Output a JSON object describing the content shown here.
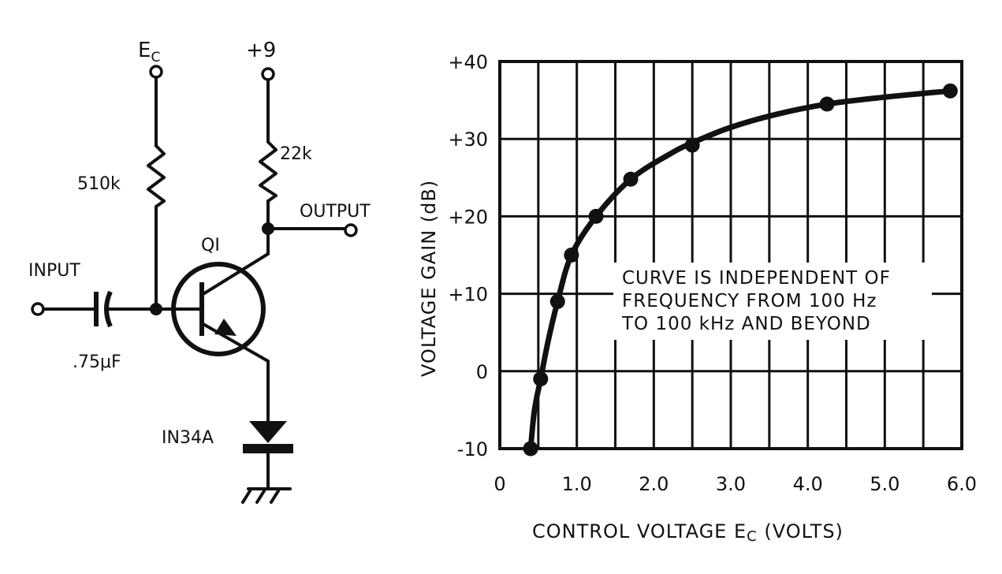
{
  "schematic": {
    "ec_label": "E",
    "ec_sub": "C",
    "supply_label": "+9",
    "r1_label": "510k",
    "r2_label": "22k",
    "output_label": "OUTPUT",
    "input_label": "INPUT",
    "transistor_label": "QI",
    "capacitor_label": ".75μF",
    "diode_label": "IN34A"
  },
  "chart_data": {
    "type": "line",
    "xlabel": "CONTROL VOLTAGE Ec (VOLTS)",
    "xlabel_main": "CONTROL VOLTAGE E",
    "xlabel_sub": "C",
    "xlabel_tail": " (VOLTS)",
    "ylabel": "VOLTAGE GAIN (dB)",
    "xlim": [
      0,
      6
    ],
    "ylim": [
      -10,
      40
    ],
    "x_ticks": [
      "0",
      "1.0",
      "2.0",
      "3.0",
      "4.0",
      "5.0",
      "6.0"
    ],
    "y_ticks": [
      "-10",
      "0",
      "+10",
      "+20",
      "+30",
      "+40"
    ],
    "grid": true,
    "annotation": [
      "CURVE IS INDEPENDENT OF",
      "FREQUENCY FROM 100 Hz",
      "TO 100 kHz AND BEYOND"
    ],
    "points": [
      {
        "x": 0.4,
        "y": -10
      },
      {
        "x": 0.53,
        "y": -1
      },
      {
        "x": 0.75,
        "y": 9
      },
      {
        "x": 0.93,
        "y": 15
      },
      {
        "x": 1.25,
        "y": 20
      },
      {
        "x": 1.7,
        "y": 24.8
      },
      {
        "x": 2.5,
        "y": 29.2
      },
      {
        "x": 4.25,
        "y": 34.5
      },
      {
        "x": 5.85,
        "y": 36.2
      }
    ],
    "curve": [
      {
        "x": 0.4,
        "y": -10
      },
      {
        "x": 0.45,
        "y": -5
      },
      {
        "x": 0.53,
        "y": -1
      },
      {
        "x": 0.63,
        "y": 4
      },
      {
        "x": 0.75,
        "y": 9
      },
      {
        "x": 0.93,
        "y": 15
      },
      {
        "x": 1.25,
        "y": 20
      },
      {
        "x": 1.7,
        "y": 24.8
      },
      {
        "x": 2.2,
        "y": 28
      },
      {
        "x": 2.5,
        "y": 29.5
      },
      {
        "x": 3.0,
        "y": 31.5
      },
      {
        "x": 3.6,
        "y": 33.2
      },
      {
        "x": 4.25,
        "y": 34.5
      },
      {
        "x": 5.0,
        "y": 35.4
      },
      {
        "x": 5.85,
        "y": 36.2
      }
    ]
  }
}
